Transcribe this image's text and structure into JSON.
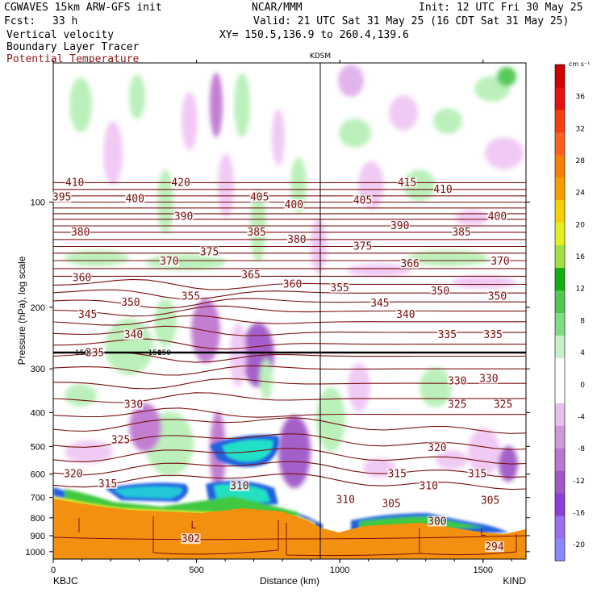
{
  "header": {
    "model": "CGWAVES 15km ARW-GFS init",
    "org": "NCAR/MMM",
    "init": "Init: 12 UTC Fri 30 May 25",
    "fcst_label": "Fcst:",
    "fcst_value": "33 h",
    "valid": "Valid: 21 UTC Sat 31 May 25 (16 CDT Sat 31 May 25)",
    "field1": "Vertical velocity",
    "field2": "Boundary Layer Tracer",
    "field3": "Potential Temperature",
    "xy": "XY= 150.5,136.9 to 260.4,139.6",
    "field3_color": "#8b1a1a"
  },
  "chart_data": {
    "type": "heatmap",
    "xlabel": "Distance (km)",
    "ylabel": "Pressure (hPa), log scale",
    "xlim": [
      0,
      1650
    ],
    "ylim": [
      1050,
      40
    ],
    "y_scale": "log",
    "x_ticks": [
      0,
      500,
      1000,
      1500
    ],
    "x_tick_labels": [
      "0",
      "500",
      "1000",
      "1500"
    ],
    "y_ticks": [
      100,
      200,
      300,
      400,
      500,
      600,
      700,
      800,
      900,
      1000
    ],
    "y_tick_labels": [
      "100",
      "200",
      "300",
      "400",
      "500",
      "600",
      "700",
      "800",
      "900",
      "1000"
    ],
    "left_station": "KBJC",
    "right_station": "KIND",
    "marker_station": "KDSM",
    "marker_x": 932,
    "tropopause_label": "150",
    "colorbar": {
      "unit": "cm s⁻¹",
      "levels": [
        -20,
        -16,
        -12,
        -8,
        -4,
        0,
        4,
        8,
        12,
        16,
        20,
        24,
        28,
        32,
        36
      ],
      "labels": [
        "-20",
        "-16",
        "-12",
        "-8",
        "-4",
        "0",
        "4",
        "8",
        "12",
        "16",
        "20",
        "24",
        "28",
        "32",
        "36"
      ],
      "colors": [
        "#8a8aff",
        "#9a70f0",
        "#8a40d8",
        "#a058c8",
        "#b878d0",
        "#d098d8",
        "#e8c0ee",
        "#ffffff",
        "#ffffff",
        "#c8f0c8",
        "#80dc80",
        "#50c850",
        "#10b010",
        "#a0e040",
        "#e0f020",
        "#f8d000",
        "#f8a000",
        "#f88000",
        "#ff6020",
        "#f84010",
        "#e81010",
        "#d00000"
      ]
    },
    "contour_labels": [
      {
        "v": "410",
        "x": 75,
        "p": 88
      },
      {
        "v": "420",
        "x": 445,
        "p": 88
      },
      {
        "v": "415",
        "x": 1235,
        "p": 88
      },
      {
        "v": "410",
        "x": 1360,
        "p": 92
      },
      {
        "v": "395",
        "x": 30,
        "p": 97
      },
      {
        "v": "400",
        "x": 285,
        "p": 98
      },
      {
        "v": "405",
        "x": 720,
        "p": 97
      },
      {
        "v": "405",
        "x": 1080,
        "p": 99
      },
      {
        "v": "400",
        "x": 840,
        "p": 102
      },
      {
        "v": "400",
        "x": 1550,
        "p": 110
      },
      {
        "v": "390",
        "x": 455,
        "p": 110
      },
      {
        "v": "390",
        "x": 1210,
        "p": 117
      },
      {
        "v": "380",
        "x": 95,
        "p": 122
      },
      {
        "v": "385",
        "x": 710,
        "p": 122
      },
      {
        "v": "385",
        "x": 1425,
        "p": 122
      },
      {
        "v": "380",
        "x": 850,
        "p": 128
      },
      {
        "v": "375",
        "x": 545,
        "p": 139
      },
      {
        "v": "375",
        "x": 1080,
        "p": 134
      },
      {
        "v": "370",
        "x": 405,
        "p": 148
      },
      {
        "v": "366",
        "x": 1245,
        "p": 150
      },
      {
        "v": "370",
        "x": 1560,
        "p": 148
      },
      {
        "v": "360",
        "x": 100,
        "p": 165
      },
      {
        "v": "365",
        "x": 690,
        "p": 162
      },
      {
        "v": "360",
        "x": 835,
        "p": 172
      },
      {
        "v": "355",
        "x": 480,
        "p": 186
      },
      {
        "v": "355",
        "x": 1000,
        "p": 176
      },
      {
        "v": "350",
        "x": 270,
        "p": 194
      },
      {
        "v": "350",
        "x": 1350,
        "p": 180
      },
      {
        "v": "350",
        "x": 1550,
        "p": 186
      },
      {
        "v": "345",
        "x": 120,
        "p": 210
      },
      {
        "v": "345",
        "x": 1140,
        "p": 195
      },
      {
        "v": "340",
        "x": 1230,
        "p": 210
      },
      {
        "v": "340",
        "x": 280,
        "p": 240
      },
      {
        "v": "335",
        "x": 1375,
        "p": 240
      },
      {
        "v": "335",
        "x": 1535,
        "p": 240
      },
      {
        "v": "335",
        "x": 145,
        "p": 270
      },
      {
        "v": "330",
        "x": 1410,
        "p": 325
      },
      {
        "v": "330",
        "x": 1520,
        "p": 320
      },
      {
        "v": "330",
        "x": 280,
        "p": 380
      },
      {
        "v": "325",
        "x": 1410,
        "p": 380
      },
      {
        "v": "325",
        "x": 1570,
        "p": 380
      },
      {
        "v": "325",
        "x": 235,
        "p": 480
      },
      {
        "v": "320",
        "x": 1340,
        "p": 505
      },
      {
        "v": "320",
        "x": 70,
        "p": 600
      },
      {
        "v": "315",
        "x": 1200,
        "p": 600
      },
      {
        "v": "315",
        "x": 1480,
        "p": 600
      },
      {
        "v": "315",
        "x": 190,
        "p": 640
      },
      {
        "v": "310",
        "x": 650,
        "p": 650
      },
      {
        "v": "310",
        "x": 1310,
        "p": 650
      },
      {
        "v": "310",
        "x": 1020,
        "p": 710
      },
      {
        "v": "305",
        "x": 1180,
        "p": 730
      },
      {
        "v": "305",
        "x": 1525,
        "p": 715
      },
      {
        "v": "300",
        "x": 1340,
        "p": 820
      },
      {
        "v": "302",
        "x": 480,
        "p": 920
      },
      {
        "v": "294",
        "x": 1540,
        "p": 970
      }
    ],
    "surface_labels": [
      {
        "v": "L",
        "x": 490,
        "p": 840
      },
      {
        "v": "L",
        "x": 1500,
        "p": 880
      }
    ],
    "grid": false,
    "legend": "colorbar right"
  }
}
